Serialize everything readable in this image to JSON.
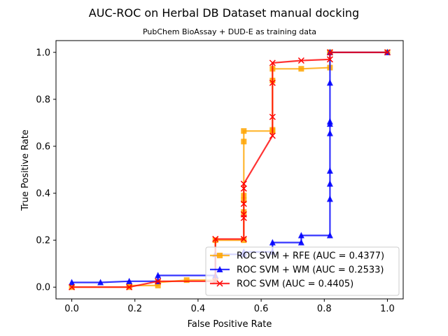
{
  "chart_data": {
    "type": "line",
    "title": "AUC-ROC on Herbal DB Dataset manual docking",
    "subtitle": "PubChem BioAssay + DUD-E as training data",
    "xlabel": "False Positive Rate",
    "ylabel": "True Positive Rate",
    "xlim": [
      -0.05,
      1.05
    ],
    "ylim": [
      -0.05,
      1.05
    ],
    "xticks": [
      "0.0",
      "0.2",
      "0.4",
      "0.6",
      "0.8",
      "1.0"
    ],
    "yticks": [
      "0.0",
      "0.2",
      "0.4",
      "0.6",
      "0.8",
      "1.0"
    ],
    "grid": false,
    "legend_position": "lower-right",
    "series": [
      {
        "name": "ROC SVM + RFE (AUC = 0.4377)",
        "color": "#ffa500",
        "marker": "square",
        "x": [
          0.0,
          0.182,
          0.182,
          0.273,
          0.273,
          0.364,
          0.455,
          0.455,
          0.545,
          0.545,
          0.545,
          0.545,
          0.545,
          0.545,
          0.636,
          0.636,
          0.636,
          0.636,
          0.727,
          0.818,
          0.818,
          0.818,
          1.0
        ],
        "y": [
          0.0,
          0.0,
          0.007,
          0.007,
          0.02,
          0.03,
          0.03,
          0.2,
          0.2,
          0.32,
          0.37,
          0.39,
          0.62,
          0.665,
          0.665,
          0.67,
          0.88,
          0.93,
          0.93,
          0.935,
          1.0,
          1.0,
          1.0
        ]
      },
      {
        "name": "ROC SVM + WM (AUC = 0.2533)",
        "color": "#0000ff",
        "marker": "triangle",
        "x": [
          0.0,
          0.091,
          0.182,
          0.273,
          0.273,
          0.455,
          0.455,
          0.545,
          0.545,
          0.636,
          0.636,
          0.727,
          0.727,
          0.818,
          0.818,
          0.818,
          0.818,
          0.818,
          0.818,
          0.818,
          0.818,
          0.818,
          1.0
        ],
        "y": [
          0.02,
          0.02,
          0.025,
          0.025,
          0.05,
          0.05,
          0.14,
          0.14,
          0.15,
          0.15,
          0.19,
          0.19,
          0.22,
          0.22,
          0.375,
          0.44,
          0.495,
          0.655,
          0.695,
          0.705,
          0.87,
          1.0,
          1.0
        ]
      },
      {
        "name": "ROC SVM (AUC = 0.4405)",
        "color": "#ff0000",
        "marker": "x",
        "x": [
          0.0,
          0.182,
          0.273,
          0.455,
          0.455,
          0.545,
          0.545,
          0.545,
          0.545,
          0.545,
          0.545,
          0.636,
          0.636,
          0.636,
          0.636,
          0.727,
          0.818,
          0.818,
          1.0
        ],
        "y": [
          0.0,
          0.0,
          0.025,
          0.025,
          0.205,
          0.205,
          0.295,
          0.31,
          0.355,
          0.42,
          0.44,
          0.645,
          0.725,
          0.87,
          0.955,
          0.965,
          0.97,
          1.0,
          1.0
        ]
      }
    ]
  }
}
